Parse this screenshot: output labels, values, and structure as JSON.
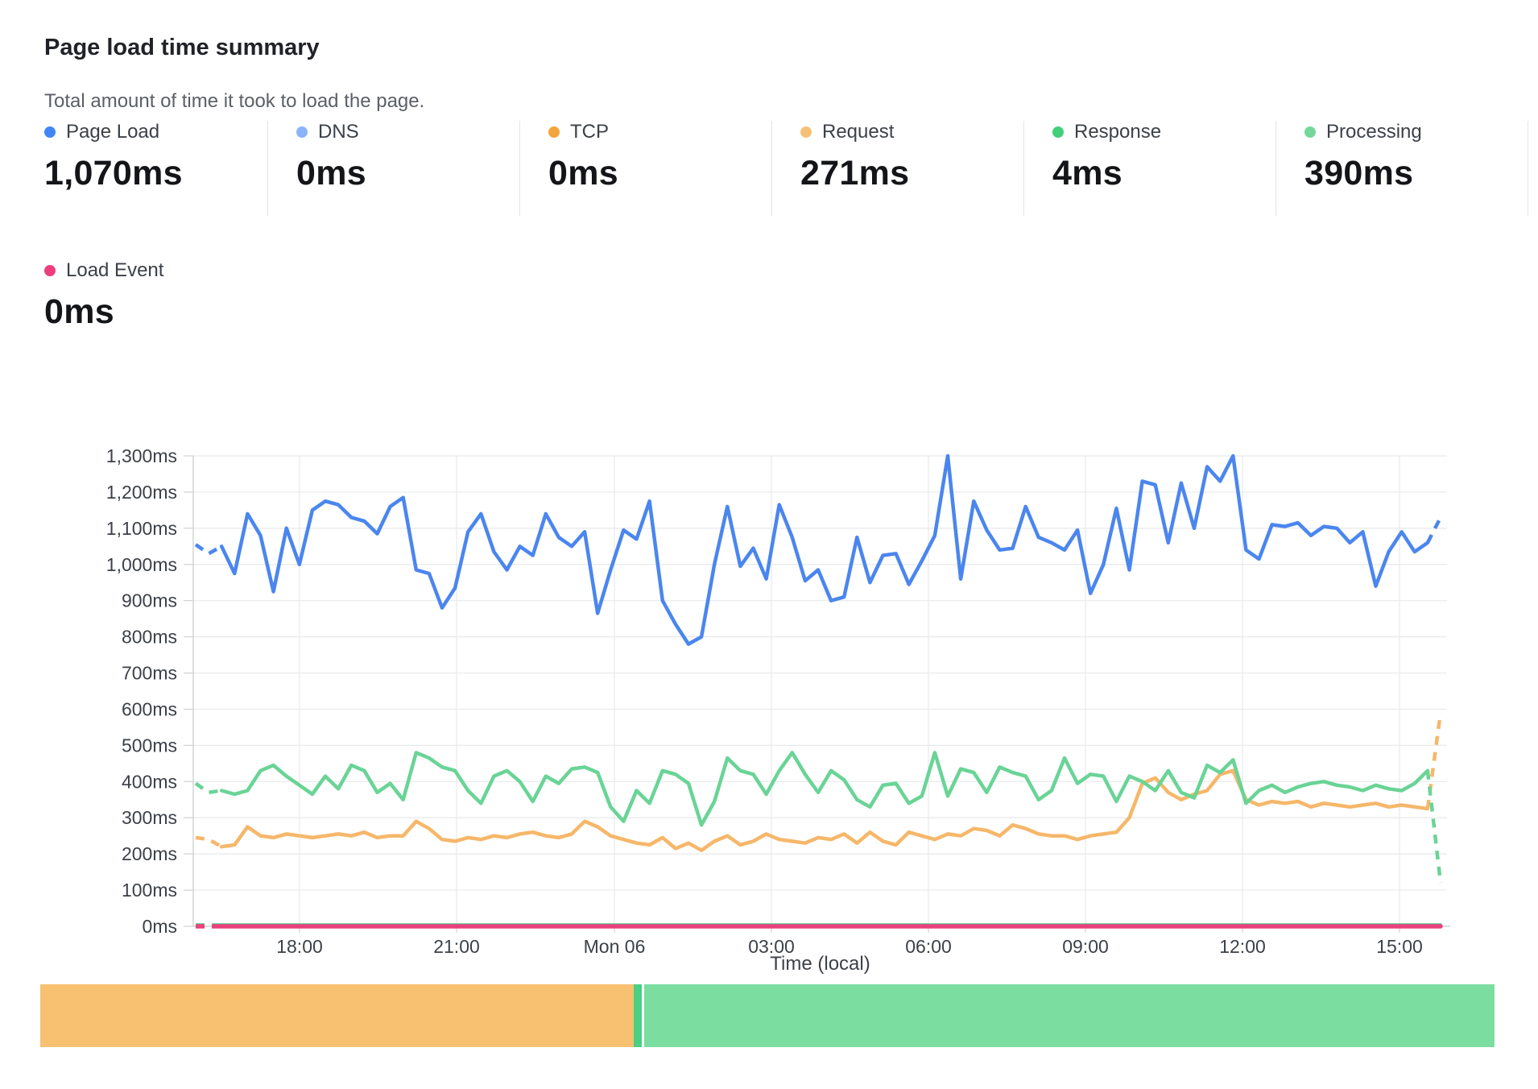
{
  "header": {
    "title": "Page load time summary",
    "subtitle": "Total amount of time it took to load the page."
  },
  "stats": {
    "row1": [
      {
        "label": "Page Load",
        "value": "1,070ms",
        "color": "#4285f4"
      },
      {
        "label": "DNS",
        "value": "0ms",
        "color": "#8ab4f8"
      },
      {
        "label": "TCP",
        "value": "0ms",
        "color": "#f2a43d"
      },
      {
        "label": "Request",
        "value": "271ms",
        "color": "#f6c177"
      },
      {
        "label": "Response",
        "value": "4ms",
        "color": "#41cf7c"
      },
      {
        "label": "Processing",
        "value": "390ms",
        "color": "#74d89c"
      }
    ],
    "row2": [
      {
        "label": "Load Event",
        "value": "0ms",
        "color": "#ee3d7d"
      }
    ]
  },
  "chart_data": {
    "type": "line",
    "xlabel": "Time (local)",
    "x_ticks": [
      "18:00",
      "21:00",
      "Mon 06",
      "03:00",
      "06:00",
      "09:00",
      "12:00",
      "15:00"
    ],
    "y_tick_labels": [
      "0ms",
      "100ms",
      "200ms",
      "300ms",
      "400ms",
      "500ms",
      "600ms",
      "700ms",
      "800ms",
      "900ms",
      "1,000ms",
      "1,100ms",
      "1,200ms",
      "1,300ms"
    ],
    "ylim": [
      0,
      1300
    ],
    "grid": true,
    "legend_position": "none",
    "series": [
      {
        "name": "DNS",
        "color": "#8ab4f8",
        "width": 3,
        "dash_end": false,
        "flat": 0,
        "count": 97
      },
      {
        "name": "TCP",
        "color": "#f2a43d",
        "width": 3,
        "dash_end": false,
        "flat": 0,
        "count": 97
      },
      {
        "name": "Response",
        "color": "#4fd189",
        "width": 4,
        "dash_end": false,
        "flat": 4,
        "count": 97
      },
      {
        "name": "Load Event",
        "color": "#e8427d",
        "width": 5.5,
        "dash_end": false,
        "flat": 0,
        "count": 97
      },
      {
        "name": "Request",
        "color": "#f6b76a",
        "width": 4.5,
        "dash_end": true,
        "values": [
          245,
          240,
          220,
          225,
          275,
          250,
          245,
          255,
          250,
          245,
          250,
          255,
          250,
          260,
          245,
          250,
          250,
          290,
          270,
          240,
          235,
          245,
          240,
          250,
          245,
          255,
          260,
          250,
          245,
          255,
          290,
          275,
          250,
          240,
          230,
          225,
          245,
          215,
          230,
          210,
          235,
          250,
          225,
          235,
          255,
          240,
          235,
          230,
          245,
          240,
          255,
          230,
          260,
          235,
          225,
          260,
          250,
          240,
          255,
          250,
          270,
          265,
          250,
          280,
          270,
          255,
          250,
          250,
          240,
          250,
          255,
          260,
          300,
          395,
          410,
          370,
          350,
          365,
          375,
          420,
          430,
          350,
          335,
          345,
          340,
          345,
          330,
          340,
          335,
          330,
          335,
          340,
          330,
          335,
          330,
          325,
          590
        ]
      },
      {
        "name": "Processing",
        "color": "#69d496",
        "width": 4.5,
        "dash_end": true,
        "values": [
          395,
          370,
          375,
          365,
          375,
          430,
          445,
          415,
          390,
          365,
          415,
          380,
          445,
          430,
          370,
          395,
          350,
          480,
          465,
          440,
          430,
          375,
          340,
          415,
          430,
          400,
          345,
          415,
          395,
          435,
          440,
          425,
          330,
          290,
          375,
          340,
          430,
          420,
          395,
          280,
          345,
          465,
          430,
          420,
          365,
          430,
          480,
          420,
          370,
          430,
          405,
          350,
          330,
          390,
          395,
          340,
          360,
          480,
          360,
          435,
          425,
          370,
          440,
          425,
          415,
          350,
          375,
          465,
          395,
          420,
          415,
          345,
          415,
          400,
          375,
          430,
          370,
          355,
          445,
          425,
          460,
          340,
          375,
          390,
          370,
          385,
          395,
          400,
          390,
          385,
          375,
          390,
          380,
          375,
          395,
          430,
          120
        ]
      },
      {
        "name": "Page Load",
        "color": "#4b86ef",
        "width": 4.5,
        "dash_end": true,
        "values": [
          1055,
          1030,
          1050,
          975,
          1140,
          1080,
          925,
          1100,
          1000,
          1150,
          1175,
          1165,
          1130,
          1120,
          1085,
          1160,
          1185,
          985,
          975,
          880,
          935,
          1090,
          1140,
          1035,
          985,
          1050,
          1025,
          1140,
          1075,
          1050,
          1090,
          865,
          985,
          1095,
          1070,
          1175,
          900,
          835,
          780,
          800,
          1000,
          1160,
          995,
          1045,
          960,
          1165,
          1075,
          955,
          985,
          900,
          910,
          1075,
          950,
          1025,
          1030,
          945,
          1010,
          1080,
          1300,
          960,
          1175,
          1095,
          1040,
          1045,
          1160,
          1075,
          1060,
          1040,
          1095,
          920,
          1000,
          1155,
          985,
          1230,
          1220,
          1060,
          1225,
          1100,
          1270,
          1230,
          1300,
          1040,
          1015,
          1110,
          1105,
          1115,
          1080,
          1105,
          1100,
          1060,
          1090,
          940,
          1035,
          1090,
          1035,
          1060,
          1130
        ]
      }
    ]
  },
  "footer_bar": {
    "segments": [
      {
        "name": "request-share",
        "color": "#f7c171",
        "fraction": 0.408
      },
      {
        "name": "share-divider",
        "color": "#4bcf82",
        "fraction": 0.0055
      },
      {
        "name": "share-gap",
        "color": "#ffffff",
        "fraction": 0.0017
      },
      {
        "name": "processing-share",
        "color": "#7cdda1",
        "fraction": 0.5848
      }
    ]
  }
}
